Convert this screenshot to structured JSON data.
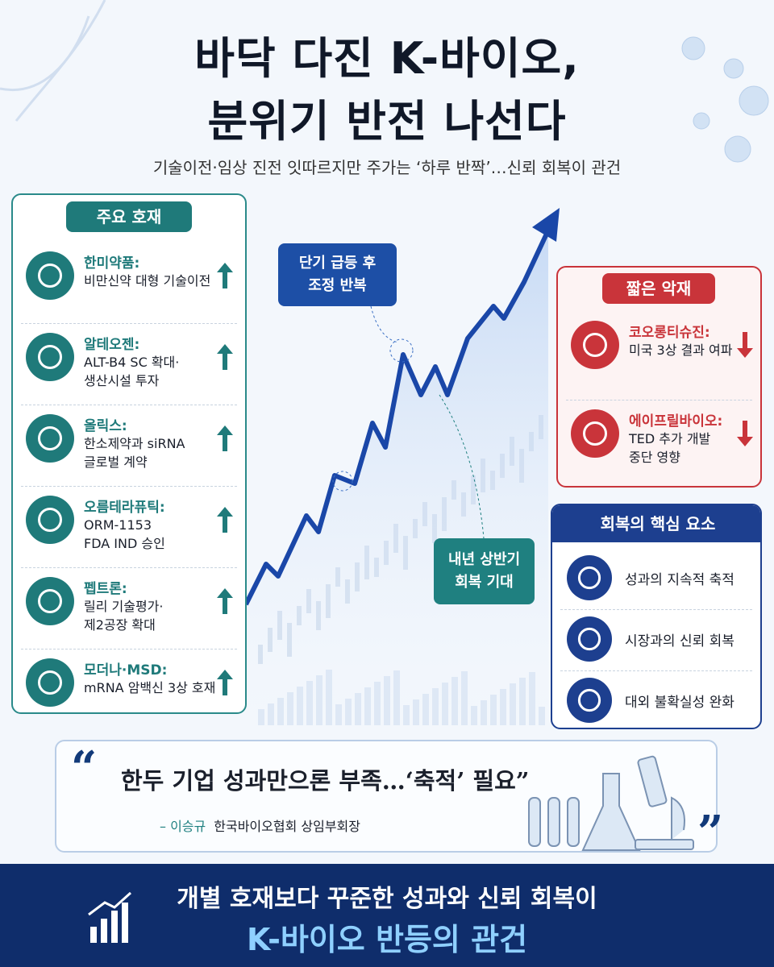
{
  "header": {
    "title": [
      "바닥 다진 K-바이오,",
      "분위기 반전 나선다"
    ],
    "subtitle": "기술이전·임상 진전 잇따르지만 주가는 ‘하루 반짝’…신뢰 회복이 관건"
  },
  "positives": {
    "title": "주요 호재",
    "items": [
      {
        "company": "한미약품:",
        "desc": [
          "비만신약 대형 기술이전"
        ]
      },
      {
        "company": "알테오젠:",
        "desc": [
          "ALT-B4 SC 확대·",
          "생산시설 투자"
        ]
      },
      {
        "company": "올릭스:",
        "desc": [
          "한소제약과 siRNA",
          "글로벌 계약"
        ]
      },
      {
        "company": "오름테라퓨틱:",
        "desc": [
          "ORM-1153",
          "FDA IND 승인"
        ]
      },
      {
        "company": "펩트론:",
        "desc": [
          "릴리 기술평가·",
          "제2공장 확대"
        ]
      },
      {
        "company": "모더나·MSD:",
        "desc": [
          "mRNA 암백신 3상 호재"
        ]
      }
    ]
  },
  "negatives": {
    "title": "짧은 악재",
    "items": [
      {
        "company": "코오롱티슈진:",
        "desc": [
          "미국 3상 결과 여파"
        ]
      },
      {
        "company": "에이프릴바이오:",
        "desc": [
          "TED 추가 개발",
          "중단 영향"
        ]
      }
    ]
  },
  "recovery": {
    "title": "회복의 핵심 요소",
    "items": [
      "성과의 지속적 축적",
      "시장과의 신뢰 회복",
      "대외 불확실성 완화"
    ]
  },
  "callouts": [
    [
      "단기 급등 후",
      "조정 반복"
    ],
    [
      "내년 상반기",
      "회복 기대"
    ]
  ],
  "quote": {
    "open_mark": "“",
    "text": "한두 기업 성과만으론 부족…‘축적’ 필요”",
    "author": "– 이승규",
    "role": "한국바이오협회 상임부회장",
    "close_mark": "”"
  },
  "footer": [
    "개별 호재보다 꾸준한 성과와 신뢰 회복이",
    "K-바이오 반등의 관건"
  ]
}
